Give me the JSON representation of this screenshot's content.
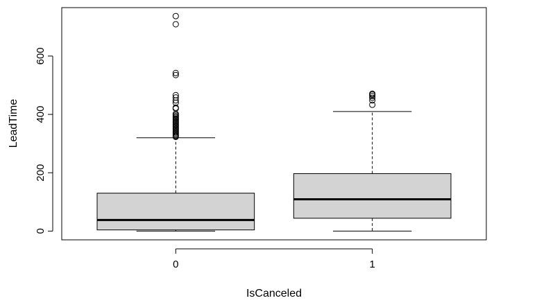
{
  "chart_data": {
    "type": "boxplot",
    "xlabel": "IsCanceled",
    "ylabel": "LeadTime",
    "categories": [
      "0",
      "1"
    ],
    "ylim": [
      -30,
      766
    ],
    "yticks": [
      0,
      200,
      400,
      600
    ],
    "box_fill": "#d3d3d3",
    "boxes": [
      {
        "category": "0",
        "whisker_low": 0,
        "q1": 4,
        "median": 38,
        "q3": 130,
        "whisker_high": 320,
        "outliers": [
          737,
          709,
          542,
          535,
          466,
          458,
          448,
          440,
          423,
          420,
          402,
          398,
          394,
          390,
          386,
          382,
          378,
          374,
          370,
          366,
          362,
          358,
          354,
          350,
          346,
          342,
          338,
          334,
          330,
          326,
          323
        ]
      },
      {
        "category": "1",
        "whisker_low": 0,
        "q1": 44,
        "median": 109,
        "q3": 197,
        "whisker_high": 410,
        "outliers": [
          471,
          468,
          463,
          457,
          448,
          433
        ]
      }
    ]
  }
}
